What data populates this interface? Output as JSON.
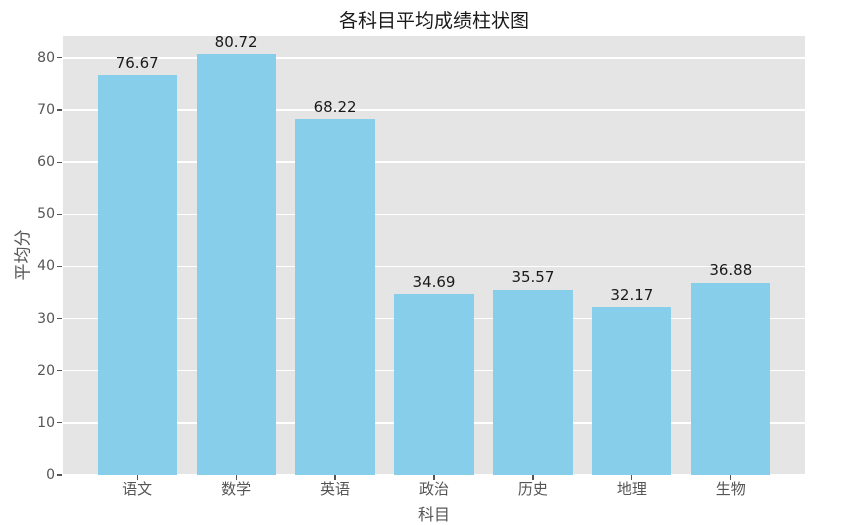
{
  "chart_data": {
    "type": "bar",
    "title": "各科目平均成绩柱状图",
    "xlabel": "科目",
    "ylabel": "平均分",
    "categories": [
      "语文",
      "数学",
      "英语",
      "政治",
      "历史",
      "地理",
      "生物"
    ],
    "values": [
      76.67,
      80.72,
      68.22,
      34.69,
      35.57,
      32.17,
      36.88
    ],
    "bar_value_labels": [
      "76.67",
      "80.72",
      "68.22",
      "34.69",
      "35.57",
      "32.17",
      "36.88"
    ],
    "yticks": [
      0,
      10,
      20,
      30,
      40,
      50,
      60,
      70,
      80
    ],
    "ylim": [
      0,
      84.2
    ],
    "grid": true,
    "legend_position": "none",
    "style": {
      "bar_color": "#87CEEB",
      "plot_background": "#E5E5E5",
      "figure_background": "#FFFFFF",
      "grid_color": "#FFFFFF",
      "tick_label_color": "#555555",
      "axis_label_color": "#555555",
      "title_color": "#1A1A1A",
      "value_label_color": "#1A1A1A"
    }
  }
}
